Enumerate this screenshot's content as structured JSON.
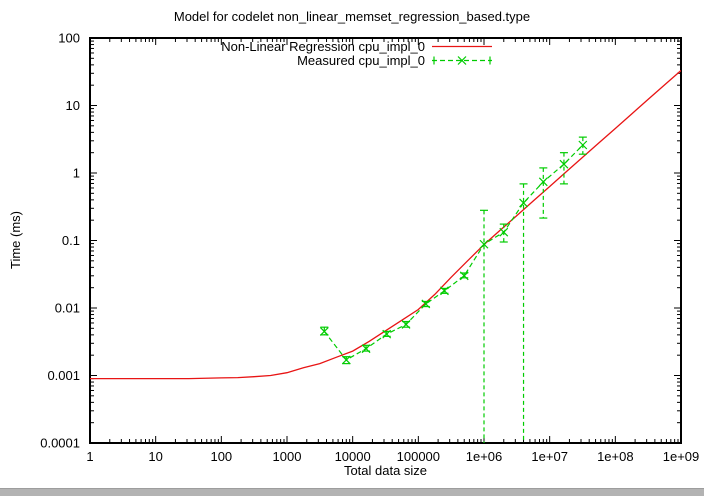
{
  "window": {
    "bottom_bar_color": "#b3b3b3"
  },
  "chart_data": {
    "type": "line",
    "title": "Model for codelet non_linear_memset_regression_based.type",
    "xlabel": "Total data size",
    "ylabel": "Time (ms)",
    "x_scale": "log",
    "y_scale": "log",
    "xlim": [
      1,
      1000000000
    ],
    "ylim": [
      0.0001,
      100
    ],
    "grid": false,
    "x_tick_labels": [
      "1",
      "10",
      "100",
      "1000",
      "10000",
      "100000",
      "1e+06",
      "1e+07",
      "1e+08",
      "1e+09"
    ],
    "y_tick_labels": [
      "100",
      "10",
      "1",
      "0.1",
      "0.01",
      "0.001",
      "0.0001"
    ],
    "legend": {
      "position": "top-center-inside"
    },
    "series": [
      {
        "name": "Non-Linear Regression cpu_impl_0",
        "color": "#e81414",
        "style": "solid-line",
        "points": [
          [
            1,
            0.0009
          ],
          [
            3.2,
            0.0009
          ],
          [
            10,
            0.0009
          ],
          [
            32,
            0.0009
          ],
          [
            100,
            0.00092
          ],
          [
            178,
            0.00093
          ],
          [
            316,
            0.00096
          ],
          [
            562,
            0.001
          ],
          [
            1000,
            0.0011
          ],
          [
            1780,
            0.0013
          ],
          [
            3160,
            0.0015
          ],
          [
            5620,
            0.00186
          ],
          [
            10000,
            0.0023
          ],
          [
            17800,
            0.0032
          ],
          [
            31600,
            0.0046
          ],
          [
            56200,
            0.0066
          ],
          [
            100000,
            0.0095
          ],
          [
            178000,
            0.0159
          ],
          [
            316000,
            0.0285
          ],
          [
            562000,
            0.05
          ],
          [
            1000000,
            0.087
          ],
          [
            1780000,
            0.143
          ],
          [
            3160000,
            0.234
          ],
          [
            5620000,
            0.385
          ],
          [
            10000000,
            0.63
          ],
          [
            17800000,
            1.04
          ],
          [
            31600000,
            1.7
          ],
          [
            56200000,
            2.79
          ],
          [
            100000000,
            4.57
          ],
          [
            178000000,
            7.5
          ],
          [
            316000000,
            12.3
          ],
          [
            562000000,
            20.2
          ],
          [
            1000000000,
            33
          ]
        ]
      },
      {
        "name": "Measured cpu_impl_0",
        "color": "#00cc00",
        "style": "dashed-line-x-markers-yerrorbars",
        "points_format": [
          "x",
          "y",
          "y_low",
          "y_high"
        ],
        "points": [
          [
            3700,
            0.0045,
            0.004,
            0.0052
          ],
          [
            8000,
            0.0017,
            0.0015,
            0.0019
          ],
          [
            16000,
            0.0025,
            0.0023,
            0.0028
          ],
          [
            33000,
            0.0041,
            0.0038,
            0.0045
          ],
          [
            65000,
            0.0057,
            0.0052,
            0.0063
          ],
          [
            130000,
            0.0115,
            0.0105,
            0.0125
          ],
          [
            250000,
            0.018,
            0.0165,
            0.0195
          ],
          [
            500000,
            0.03,
            0.028,
            0.033
          ],
          [
            1000000,
            0.088,
            5e-05,
            0.28
          ],
          [
            2000000,
            0.133,
            0.095,
            0.175
          ],
          [
            4000000,
            0.36,
            5e-05,
            0.69
          ],
          [
            8000000,
            0.74,
            0.215,
            1.19
          ],
          [
            16500000,
            1.35,
            0.69,
            2.0
          ],
          [
            32000000,
            2.6,
            1.9,
            3.4
          ]
        ]
      }
    ]
  }
}
